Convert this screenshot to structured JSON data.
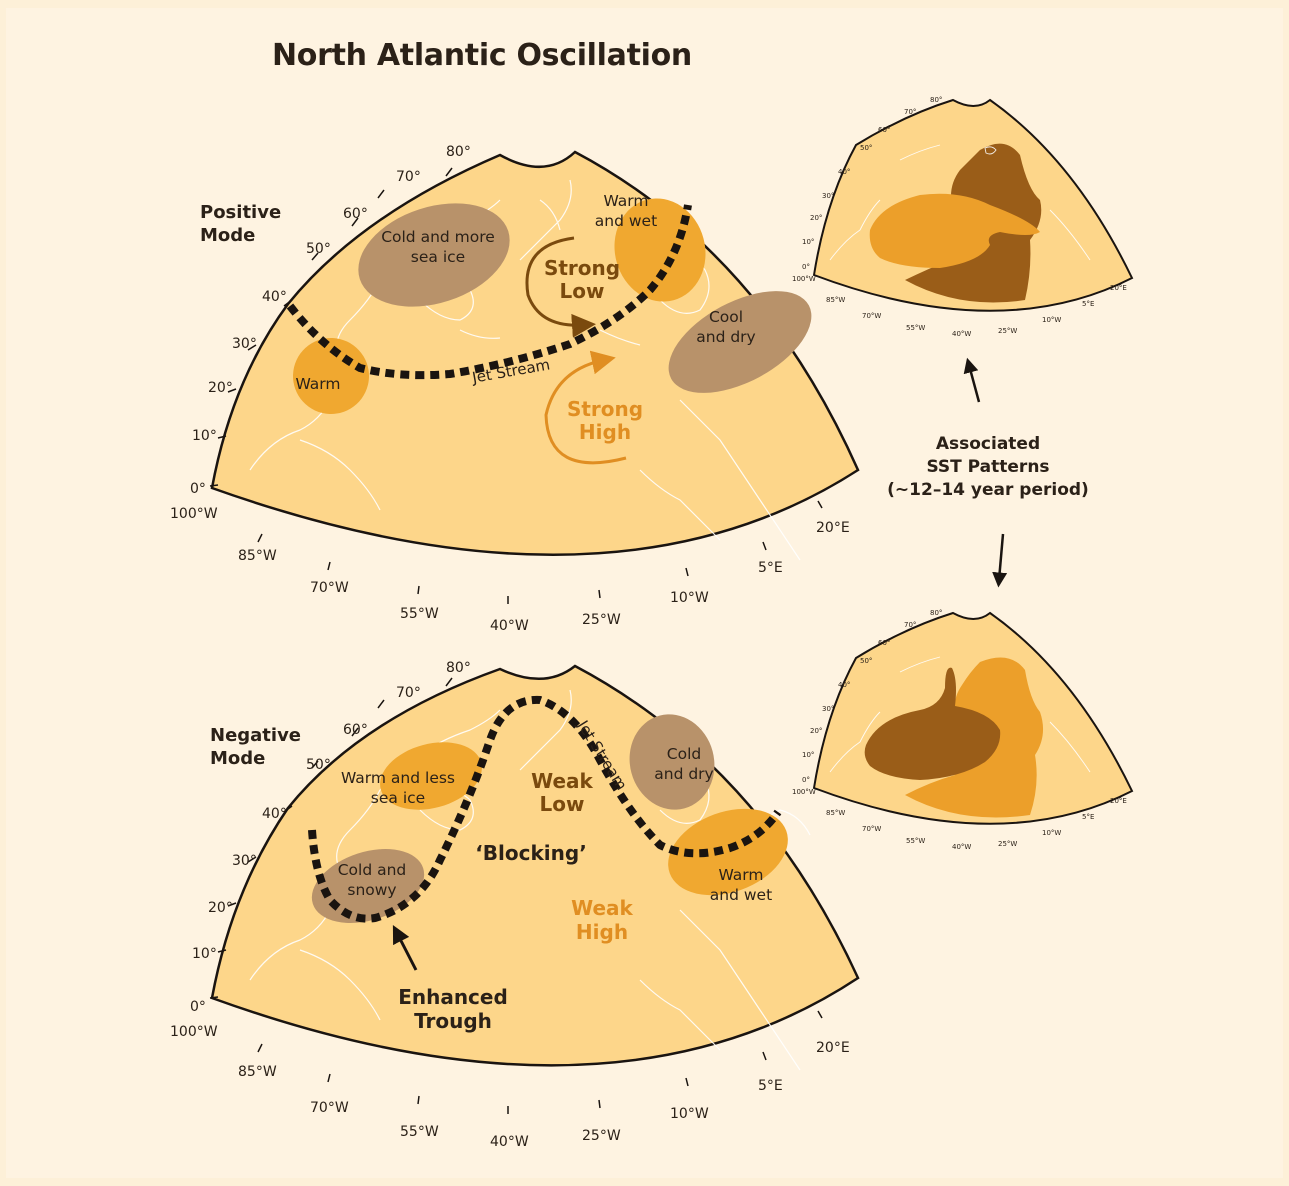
{
  "title": "North Atlantic Oscillation",
  "lat_labels": [
    "80°",
    "70°",
    "60°",
    "50°",
    "40°",
    "30°",
    "20°",
    "10°",
    "0°"
  ],
  "lon_labels": [
    "100°W",
    "85°W",
    "70°W",
    "55°W",
    "40°W",
    "25°W",
    "10°W",
    "5°E",
    "20°E"
  ],
  "positive": {
    "mode_line1": "Positive",
    "mode_line2": "Mode",
    "regions": {
      "cold_line1": "Cold and more",
      "cold_line2": "sea ice",
      "warmwet_line1": "Warm",
      "warmwet_line2": "and wet",
      "warm": "Warm",
      "cooldry_line1": "Cool",
      "cooldry_line2": "and dry"
    },
    "low_line1": "Strong",
    "low_line2": "Low",
    "high_line1": "Strong",
    "high_line2": "High",
    "jet": "Jet Stream"
  },
  "negative": {
    "mode_line1": "Negative",
    "mode_line2": "Mode",
    "regions": {
      "warmless_line1": "Warm and less",
      "warmless_line2": "sea ice",
      "coldsnowy_line1": "Cold and",
      "coldsnowy_line2": "snowy",
      "colddry_line1": "Cold",
      "colddry_line2": "and dry",
      "warmwet_line1": "Warm",
      "warmwet_line2": "and wet"
    },
    "low_line1": "Weak",
    "low_line2": "Low",
    "high_line1": "Weak",
    "high_line2": "High",
    "blocking": "‘Blocking’",
    "trough_line1": "Enhanced",
    "trough_line2": "Trough",
    "jet": "Jet Stream"
  },
  "sst_line1": "Associated",
  "sst_line2": "SST Patterns",
  "sst_line3": "(~12–14 year period)",
  "colors": {
    "land_ocean": "#fdd68a",
    "warm": "#f0a830",
    "cold": "#b8926a",
    "sst_warm": "#ec9f2a",
    "sst_dark": "#9a5d18",
    "low": "#7a4a0e",
    "high": "#e08e22",
    "background": "#fef3e1"
  }
}
